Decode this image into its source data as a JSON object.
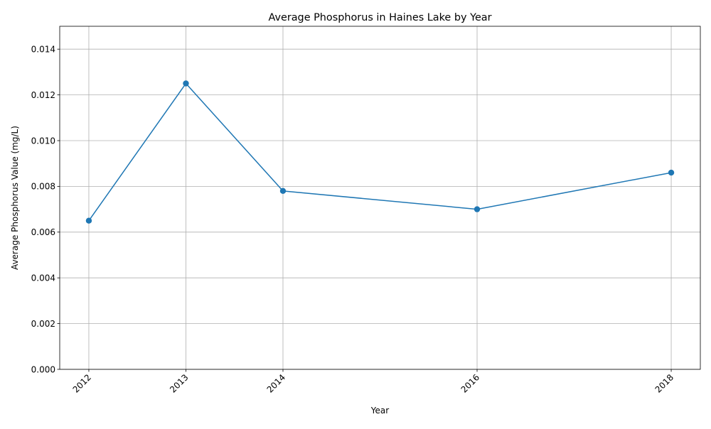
{
  "chart_data": {
    "type": "line",
    "title": "Average Phosphorus in Haines Lake by Year",
    "xlabel": "Year",
    "ylabel": "Average Phosphorus Value (mg/L)",
    "x": [
      2012,
      2013,
      2014,
      2016,
      2018
    ],
    "x_tick_labels": [
      "2012",
      "2013",
      "2014",
      "2016",
      "2018"
    ],
    "series": [
      {
        "values": [
          0.0065,
          0.0125,
          0.0078,
          0.007,
          0.0086
        ],
        "color": "#1f77b4",
        "marker": "circle"
      }
    ],
    "xlim": [
      2011.7,
      2018.3
    ],
    "ylim": [
      0,
      0.015
    ],
    "y_ticks": [
      0.0,
      0.002,
      0.004,
      0.006,
      0.008,
      0.01,
      0.012,
      0.014
    ],
    "y_tick_labels": [
      "0.000",
      "0.002",
      "0.004",
      "0.006",
      "0.008",
      "0.010",
      "0.012",
      "0.014"
    ],
    "grid": true,
    "legend": false
  }
}
